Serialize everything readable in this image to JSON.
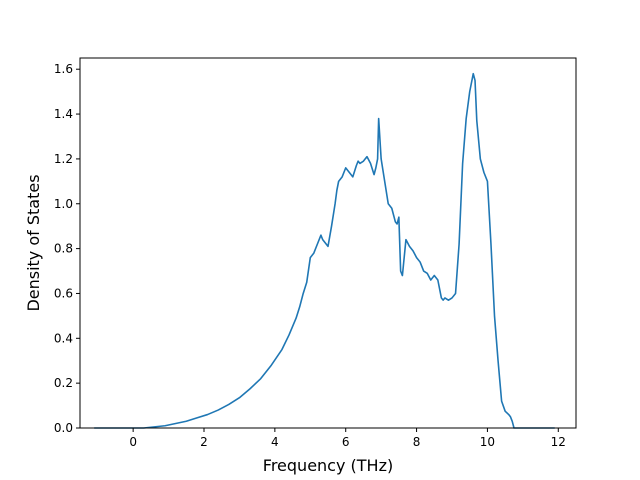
{
  "chart_data": {
    "type": "line",
    "title": "",
    "xlabel": "Frequency (THz)",
    "ylabel": "Density of States",
    "xlim": [
      -1.5,
      12.5
    ],
    "ylim": [
      0,
      1.65
    ],
    "xticks": [
      0,
      2,
      4,
      6,
      8,
      10,
      12
    ],
    "xtick_labels": [
      "0",
      "2",
      "4",
      "6",
      "8",
      "10",
      "12"
    ],
    "yticks": [
      0.0,
      0.2,
      0.4,
      0.6,
      0.8,
      1.0,
      1.2,
      1.4,
      1.6
    ],
    "ytick_labels": [
      "0.0",
      "0.2",
      "0.4",
      "0.6",
      "0.8",
      "1.0",
      "1.2",
      "1.4",
      "1.6"
    ],
    "grid": false,
    "legend": "none",
    "series": [
      {
        "color": "#1f77b4",
        "x": [
          -1.1,
          -0.5,
          0.0,
          0.3,
          0.6,
          0.9,
          1.2,
          1.5,
          1.8,
          2.1,
          2.4,
          2.7,
          3.0,
          3.3,
          3.6,
          3.9,
          4.2,
          4.4,
          4.6,
          4.7,
          4.8,
          4.9,
          5.0,
          5.1,
          5.2,
          5.3,
          5.35,
          5.4,
          5.5,
          5.6,
          5.65,
          5.7,
          5.75,
          5.8,
          5.9,
          6.0,
          6.1,
          6.2,
          6.3,
          6.35,
          6.4,
          6.5,
          6.6,
          6.7,
          6.8,
          6.85,
          6.9,
          6.93,
          7.0,
          7.1,
          7.2,
          7.3,
          7.4,
          7.45,
          7.5,
          7.55,
          7.6,
          7.7,
          7.8,
          7.9,
          8.0,
          8.1,
          8.2,
          8.3,
          8.4,
          8.5,
          8.6,
          8.7,
          8.75,
          8.8,
          8.9,
          9.0,
          9.1,
          9.2,
          9.3,
          9.4,
          9.5,
          9.6,
          9.65,
          9.7,
          9.8,
          9.9,
          10.0,
          10.1,
          10.2,
          10.3,
          10.4,
          10.5,
          10.6,
          10.65,
          10.7,
          10.75,
          11.0,
          11.5,
          11.9
        ],
        "y": [
          0.0,
          0.0,
          0.0,
          0.0,
          0.005,
          0.01,
          0.02,
          0.03,
          0.045,
          0.06,
          0.08,
          0.105,
          0.135,
          0.175,
          0.22,
          0.28,
          0.35,
          0.415,
          0.49,
          0.54,
          0.6,
          0.65,
          0.76,
          0.78,
          0.82,
          0.86,
          0.84,
          0.83,
          0.81,
          0.9,
          0.95,
          1.0,
          1.06,
          1.1,
          1.12,
          1.16,
          1.14,
          1.12,
          1.17,
          1.19,
          1.18,
          1.19,
          1.21,
          1.18,
          1.13,
          1.16,
          1.2,
          1.38,
          1.2,
          1.1,
          1.0,
          0.98,
          0.92,
          0.91,
          0.94,
          0.7,
          0.68,
          0.84,
          0.81,
          0.79,
          0.76,
          0.74,
          0.7,
          0.69,
          0.66,
          0.68,
          0.66,
          0.58,
          0.57,
          0.58,
          0.57,
          0.58,
          0.6,
          0.82,
          1.18,
          1.38,
          1.5,
          1.58,
          1.55,
          1.37,
          1.2,
          1.14,
          1.1,
          0.82,
          0.5,
          0.3,
          0.12,
          0.075,
          0.06,
          0.05,
          0.03,
          0.0,
          0.0,
          0.0,
          0.0
        ]
      }
    ]
  }
}
